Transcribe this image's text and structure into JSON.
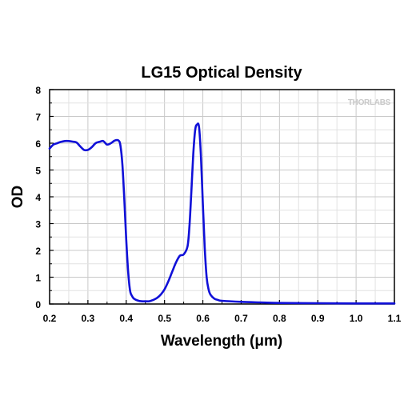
{
  "chart_data": {
    "type": "line",
    "title": "LG15 Optical Density",
    "xlabel": "Wavelength (μm)",
    "ylabel": "OD",
    "xlim": [
      0.2,
      1.1
    ],
    "ylim": [
      0,
      8
    ],
    "xticks": [
      "0.2",
      "0.3",
      "0.4",
      "0.5",
      "0.6",
      "0.7",
      "0.8",
      "0.9",
      "1.0",
      "1.1"
    ],
    "yticks": [
      "0",
      "1",
      "2",
      "3",
      "4",
      "5",
      "6",
      "7",
      "8"
    ],
    "grid": true,
    "watermark": "THORLABS",
    "series": [
      {
        "color": "#1010d8",
        "x": [
          0.2,
          0.21,
          0.22,
          0.23,
          0.24,
          0.25,
          0.26,
          0.27,
          0.28,
          0.29,
          0.3,
          0.31,
          0.32,
          0.33,
          0.34,
          0.35,
          0.36,
          0.37,
          0.38,
          0.385,
          0.39,
          0.395,
          0.4,
          0.405,
          0.41,
          0.415,
          0.42,
          0.43,
          0.44,
          0.45,
          0.46,
          0.47,
          0.48,
          0.49,
          0.5,
          0.51,
          0.52,
          0.53,
          0.54,
          0.55,
          0.56,
          0.565,
          0.57,
          0.575,
          0.58,
          0.585,
          0.59,
          0.595,
          0.6,
          0.605,
          0.61,
          0.615,
          0.62,
          0.63,
          0.64,
          0.65,
          0.7,
          0.75,
          0.8,
          0.9,
          1.0,
          1.1
        ],
        "y": [
          5.8,
          5.95,
          6.0,
          6.05,
          6.08,
          6.08,
          6.06,
          6.03,
          5.88,
          5.75,
          5.75,
          5.85,
          6.0,
          6.05,
          6.08,
          5.95,
          6.0,
          6.1,
          6.1,
          5.9,
          5.2,
          3.9,
          2.4,
          1.2,
          0.5,
          0.3,
          0.2,
          0.13,
          0.1,
          0.1,
          0.1,
          0.15,
          0.22,
          0.35,
          0.55,
          0.85,
          1.2,
          1.55,
          1.8,
          1.85,
          2.15,
          2.9,
          4.2,
          5.6,
          6.5,
          6.7,
          6.6,
          5.5,
          3.7,
          2.1,
          1.0,
          0.55,
          0.35,
          0.2,
          0.15,
          0.12,
          0.08,
          0.06,
          0.04,
          0.03,
          0.02,
          0.02
        ]
      }
    ]
  }
}
